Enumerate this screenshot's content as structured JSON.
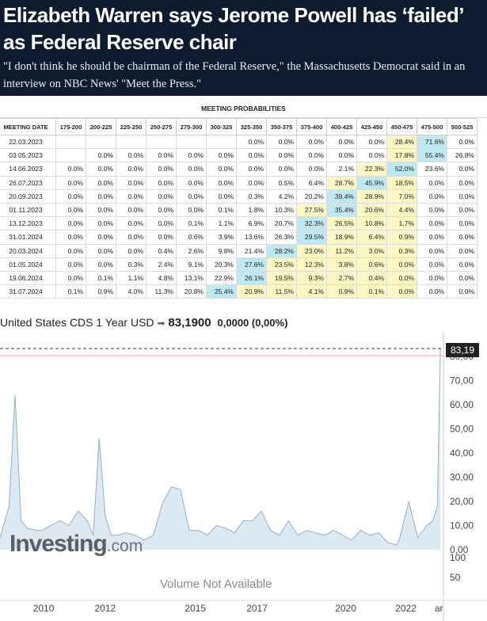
{
  "article": {
    "headline": "Elizabeth Warren says Jerome Powell has ‘failed’ as Federal Reserve chair",
    "subhead": "\"I don't think he should be chairman of the Federal Reserve,\" the Massachusetts Democrat said in an interview on NBC News' \"Meet the Press.\""
  },
  "probabilities": {
    "title": "MEETING PROBABILITIES",
    "headers": [
      "MEETING DATE",
      "175-200",
      "200-225",
      "225-250",
      "250-275",
      "275-300",
      "300-325",
      "325-350",
      "350-375",
      "375-400",
      "400-425",
      "425-450",
      "450-475",
      "475-500",
      "500-525"
    ],
    "rows": [
      {
        "date": "22.03.2023",
        "cells": [
          "",
          "",
          "",
          "",
          "",
          "",
          "0.0%",
          "0.0%",
          "0.0%",
          "0.0%",
          "0.0%",
          "28.4%",
          "71.6%",
          "0.0%"
        ],
        "hl": {
          "11": "y",
          "12": "b"
        }
      },
      {
        "date": "03.05.2023",
        "cells": [
          "",
          "0.0%",
          "0.0%",
          "0.0%",
          "0.0%",
          "0.0%",
          "0.0%",
          "0.0%",
          "0.0%",
          "0.0%",
          "0.0%",
          "17.8%",
          "55.4%",
          "26.8%"
        ],
        "hl": {
          "11": "y",
          "12": "b"
        }
      },
      {
        "date": "14.06.2023",
        "cells": [
          "0.0%",
          "0.0%",
          "0.0%",
          "0.0%",
          "0.0%",
          "0.0%",
          "0.0%",
          "0.0%",
          "0.0%",
          "2.1%",
          "22.3%",
          "52.0%",
          "23.6%",
          "0.0%"
        ],
        "hl": {
          "10": "y",
          "11": "b"
        }
      },
      {
        "date": "26.07.2023",
        "cells": [
          "0.0%",
          "0.0%",
          "0.0%",
          "0.0%",
          "0.0%",
          "0.0%",
          "0.0%",
          "0.5%",
          "6.4%",
          "28.7%",
          "45.9%",
          "18.5%",
          "0.0%",
          "0.0%"
        ],
        "hl": {
          "9": "y",
          "10": "b",
          "11": "y"
        }
      },
      {
        "date": "20.09.2023",
        "cells": [
          "0.0%",
          "0.0%",
          "0.0%",
          "0.0%",
          "0.0%",
          "0.0%",
          "0.3%",
          "4.2%",
          "20.2%",
          "39.4%",
          "28.9%",
          "7.0%",
          "0.0%",
          "0.0%"
        ],
        "hl": {
          "9": "b",
          "10": "y",
          "11": "y"
        }
      },
      {
        "date": "01.11.2023",
        "cells": [
          "0.0%",
          "0.0%",
          "0.0%",
          "0.0%",
          "0.0%",
          "0.1%",
          "1.8%",
          "10.3%",
          "27.5%",
          "35.4%",
          "20.6%",
          "4.4%",
          "0.0%",
          "0.0%"
        ],
        "hl": {
          "8": "y",
          "9": "b",
          "10": "y",
          "11": "y"
        }
      },
      {
        "date": "13.12.2023",
        "cells": [
          "0.0%",
          "0.0%",
          "0.0%",
          "0.0%",
          "0.1%",
          "1.1%",
          "6.9%",
          "20.7%",
          "32.3%",
          "26.5%",
          "10.8%",
          "1.7%",
          "0.0%",
          "0.0%"
        ],
        "hl": {
          "8": "b",
          "9": "y",
          "10": "y",
          "11": "y"
        }
      },
      {
        "date": "31.01.2024",
        "cells": [
          "0.0%",
          "0.0%",
          "0.0%",
          "0.0%",
          "0.6%",
          "3.9%",
          "13.6%",
          "26.3%",
          "29.5%",
          "18.9%",
          "6.4%",
          "0.9%",
          "0.0%",
          "0.0%"
        ],
        "hl": {
          "8": "b",
          "9": "y",
          "10": "y",
          "11": "y"
        }
      },
      {
        "date": "20.03.2024",
        "cells": [
          "0.0%",
          "0.0%",
          "0.0%",
          "0.4%",
          "2.6%",
          "9.8%",
          "21.4%",
          "28.2%",
          "23.0%",
          "11.2%",
          "3.0%",
          "0.3%",
          "0.0%",
          "0.0%"
        ],
        "hl": {
          "7": "b",
          "8": "y",
          "9": "y",
          "10": "y",
          "11": "y"
        }
      },
      {
        "date": "01.05.2024",
        "cells": [
          "0.0%",
          "0.0%",
          "0.3%",
          "2.4%",
          "9.1%",
          "20.3%",
          "27.6%",
          "23.5%",
          "12.3%",
          "3.8%",
          "0.6%",
          "0.0%",
          "0.0%",
          "0.0%"
        ],
        "hl": {
          "6": "b",
          "7": "y",
          "8": "y",
          "9": "y",
          "10": "y",
          "11": "y"
        }
      },
      {
        "date": "19.06.2024",
        "cells": [
          "0.0%",
          "0.1%",
          "1.1%",
          "4.8%",
          "13.1%",
          "22.9%",
          "26.1%",
          "19.5%",
          "9.3%",
          "2.7%",
          "0.4%",
          "0.0%",
          "0.0%",
          "0.0%"
        ],
        "hl": {
          "6": "b",
          "7": "y",
          "8": "y",
          "9": "y",
          "10": "y",
          "11": "y"
        }
      },
      {
        "date": "31.07.2024",
        "cells": [
          "0.1%",
          "0.9%",
          "4.0%",
          "11.3%",
          "20.8%",
          "25.4%",
          "20.9%",
          "11.5%",
          "4.1%",
          "0.9%",
          "0.1%",
          "0.0%",
          "0.0%",
          "0.0%"
        ],
        "hl": {
          "5": "b",
          "6": "y",
          "7": "y",
          "8": "y",
          "9": "y",
          "10": "y",
          "11": "y"
        }
      }
    ]
  },
  "cds": {
    "name": "United States CDS 1 Year USD",
    "arrow": "➡",
    "value": "83,1900",
    "change": "0,0000 (0,00%)",
    "last_badge": "83,19",
    "watermark": "Investing",
    "watermark_suffix": ".com",
    "volume_text": "Volume Not Available",
    "volume_ticks": [
      "100",
      "50"
    ]
  },
  "chart_data": {
    "type": "area",
    "title": "",
    "ylim": [
      0,
      80
    ],
    "yticks": [
      "80,00",
      "70,00",
      "60,00",
      "50,00",
      "40,00",
      "30,00",
      "20,00",
      "10,00",
      "0,00"
    ],
    "xticks": [
      "2010",
      "2012",
      "2015",
      "2017",
      "2020",
      "2022",
      "ar"
    ],
    "x": [
      2008.6,
      2008.9,
      2009.1,
      2009.3,
      2009.5,
      2009.8,
      2010.0,
      2010.3,
      2010.6,
      2010.9,
      2011.2,
      2011.5,
      2011.7,
      2011.9,
      2012.1,
      2012.3,
      2012.5,
      2012.8,
      2013.1,
      2013.4,
      2013.7,
      2014.0,
      2014.3,
      2014.6,
      2014.9,
      2015.2,
      2015.5,
      2015.8,
      2016.1,
      2016.4,
      2016.7,
      2017.0,
      2017.3,
      2017.6,
      2017.9,
      2018.2,
      2018.5,
      2018.8,
      2019.1,
      2019.4,
      2019.7,
      2020.0,
      2020.3,
      2020.6,
      2020.9,
      2021.2,
      2021.5,
      2021.8,
      2021.9,
      2022.2,
      2022.5,
      2022.8,
      2023.0,
      2023.15,
      2023.25
    ],
    "values": [
      5,
      18,
      64,
      12,
      9,
      8,
      8,
      10,
      12,
      10,
      16,
      12,
      6,
      46,
      14,
      6,
      6,
      7,
      6,
      4,
      6,
      19,
      26,
      25,
      8,
      8,
      6,
      10,
      9,
      7,
      12,
      12,
      16,
      8,
      6,
      12,
      6,
      8,
      7,
      6,
      8,
      6,
      4,
      8,
      6,
      7,
      3,
      2,
      5,
      20,
      5,
      10,
      12,
      18,
      83.19
    ],
    "last_value": 83.19
  }
}
